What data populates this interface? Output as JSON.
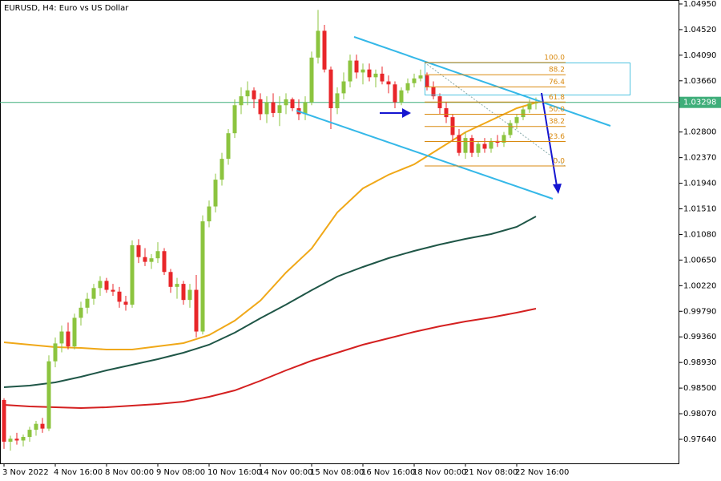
{
  "chart_data": {
    "type": "candlestick",
    "title": "EURUSD, H4:  Euro vs US Dollar",
    "ylim": [
      0.97236,
      1.05017
    ],
    "yticks": [
      {
        "value": 1.0495,
        "label": "1.04950"
      },
      {
        "value": 1.0452,
        "label": "1.04520"
      },
      {
        "value": 1.0409,
        "label": "1.04090"
      },
      {
        "value": 1.0366,
        "label": "1.03660"
      },
      {
        "value": 1.028,
        "label": "1.02800"
      },
      {
        "value": 1.0237,
        "label": "1.02370"
      },
      {
        "value": 1.0194,
        "label": "1.01940"
      },
      {
        "value": 1.0151,
        "label": "1.01510"
      },
      {
        "value": 1.0108,
        "label": "1.01080"
      },
      {
        "value": 1.0065,
        "label": "1.00650"
      },
      {
        "value": 1.0022,
        "label": "1.00220"
      },
      {
        "value": 0.9979,
        "label": "0.99790"
      },
      {
        "value": 0.9936,
        "label": "0.99360"
      },
      {
        "value": 0.9893,
        "label": "0.98930"
      },
      {
        "value": 0.985,
        "label": "0.98500"
      },
      {
        "value": 0.9807,
        "label": "0.98070"
      },
      {
        "value": 0.9764,
        "label": "0.97640"
      }
    ],
    "current_price": {
      "value": 1.03298,
      "label": "1.03298",
      "color": "#3fae7a"
    },
    "bull_color": "#8cc43f",
    "bear_color": "#e8262a",
    "categories": [
      "3 Nov 2022",
      null,
      null,
      null,
      null,
      null,
      null,
      null,
      "4 Nov 16:00",
      null,
      null,
      null,
      null,
      null,
      null,
      null,
      "8 Nov 00:00",
      null,
      null,
      null,
      null,
      null,
      null,
      null,
      "9 Nov 08:00",
      null,
      null,
      null,
      null,
      null,
      null,
      null,
      "10 Nov 16:00",
      null,
      null,
      null,
      null,
      null,
      null,
      null,
      "14 Nov 00:00",
      null,
      null,
      null,
      null,
      null,
      null,
      null,
      "15 Nov 08:00",
      null,
      null,
      null,
      null,
      null,
      null,
      null,
      "16 Nov 16:00",
      null,
      null,
      null,
      null,
      null,
      null,
      null,
      "18 Nov 00:00",
      null,
      null,
      null,
      null,
      null,
      null,
      null,
      "21 Nov 08:00",
      null,
      null,
      null,
      null,
      null,
      null,
      null,
      "22 Nov 16:00",
      null,
      null,
      null
    ],
    "ohlc": [
      [
        0.983,
        0.9833,
        0.9748,
        0.976
      ],
      [
        0.976,
        0.977,
        0.9745,
        0.9765
      ],
      [
        0.9765,
        0.9775,
        0.9755,
        0.9762
      ],
      [
        0.9762,
        0.9772,
        0.9752,
        0.9768
      ],
      [
        0.9768,
        0.9785,
        0.976,
        0.978
      ],
      [
        0.978,
        0.9795,
        0.977,
        0.979
      ],
      [
        0.979,
        0.98,
        0.9775,
        0.9782
      ],
      [
        0.9782,
        0.9905,
        0.9778,
        0.9895
      ],
      [
        0.9895,
        0.9935,
        0.9885,
        0.9925
      ],
      [
        0.9925,
        0.9955,
        0.991,
        0.9945
      ],
      [
        0.9945,
        0.996,
        0.9915,
        0.992
      ],
      [
        0.992,
        0.9975,
        0.9915,
        0.9968
      ],
      [
        0.9968,
        0.9995,
        0.9955,
        0.9985
      ],
      [
        0.9985,
        1.001,
        0.9975,
        1.0
      ],
      [
        1.0,
        1.0025,
        0.999,
        1.0018
      ],
      [
        1.0018,
        1.0038,
        1.0005,
        1.003
      ],
      [
        1.003,
        1.0035,
        1.001,
        1.0015
      ],
      [
        1.0015,
        1.0025,
        1.0005,
        1.0012
      ],
      [
        1.0012,
        1.002,
        0.9985,
        0.9995
      ],
      [
        0.9995,
        1.0005,
        0.998,
        0.999
      ],
      [
        0.999,
        1.0098,
        0.9985,
        1.009
      ],
      [
        1.009,
        1.01,
        1.006,
        1.007
      ],
      [
        1.007,
        1.0085,
        1.0055,
        1.0062
      ],
      [
        1.0062,
        1.0075,
        1.005,
        1.0068
      ],
      [
        1.0068,
        1.0095,
        1.006,
        1.008
      ],
      [
        1.008,
        1.0085,
        1.004,
        1.0045
      ],
      [
        1.0045,
        1.005,
        1.001,
        1.002
      ],
      [
        1.002,
        1.0035,
        1.0,
        1.0025
      ],
      [
        1.0025,
        1.003,
        0.999,
        0.9998
      ],
      [
        0.9998,
        1.0025,
        0.9985,
        1.0015
      ],
      [
        1.0015,
        1.004,
        0.9935,
        0.9945
      ],
      [
        0.9945,
        1.014,
        0.994,
        1.013
      ],
      [
        1.013,
        1.0165,
        1.012,
        1.0155
      ],
      [
        1.0155,
        1.021,
        1.0145,
        1.02
      ],
      [
        1.02,
        1.0245,
        1.019,
        1.0235
      ],
      [
        1.0235,
        1.0285,
        1.0225,
        1.0278
      ],
      [
        1.0278,
        1.0335,
        1.027,
        1.0325
      ],
      [
        1.0325,
        1.0355,
        1.031,
        1.034
      ],
      [
        1.034,
        1.0365,
        1.0325,
        1.035
      ],
      [
        1.035,
        1.0355,
        1.032,
        1.0335
      ],
      [
        1.0335,
        1.0345,
        1.03,
        1.031
      ],
      [
        1.031,
        1.034,
        1.0295,
        1.033
      ],
      [
        1.033,
        1.0345,
        1.0305,
        1.0312
      ],
      [
        1.0312,
        1.034,
        1.029,
        1.0325
      ],
      [
        1.0325,
        1.0345,
        1.031,
        1.0335
      ],
      [
        1.0335,
        1.0338,
        1.0315,
        1.032
      ],
      [
        1.032,
        1.0335,
        1.03,
        1.031
      ],
      [
        1.031,
        1.034,
        1.03,
        1.033
      ],
      [
        1.033,
        1.0415,
        1.0325,
        1.0405
      ],
      [
        1.0405,
        1.0485,
        1.0395,
        1.045
      ],
      [
        1.045,
        1.046,
        1.038,
        1.0385
      ],
      [
        1.0385,
        1.039,
        1.0285,
        1.032
      ],
      [
        1.032,
        1.0355,
        1.031,
        1.0345
      ],
      [
        1.0345,
        1.038,
        1.0335,
        1.0365
      ],
      [
        1.0365,
        1.041,
        1.0355,
        1.04
      ],
      [
        1.04,
        1.041,
        1.037,
        1.038
      ],
      [
        1.038,
        1.0395,
        1.036,
        1.0385
      ],
      [
        1.0385,
        1.0395,
        1.0365,
        1.0372
      ],
      [
        1.0372,
        1.0385,
        1.0355,
        1.0378
      ],
      [
        1.0378,
        1.039,
        1.036,
        1.0365
      ],
      [
        1.0365,
        1.0375,
        1.0345,
        1.036
      ],
      [
        1.036,
        1.0365,
        1.032,
        1.033
      ],
      [
        1.033,
        1.0355,
        1.0325,
        1.035
      ],
      [
        1.035,
        1.037,
        1.0345,
        1.0362
      ],
      [
        1.0362,
        1.0378,
        1.0355,
        1.037
      ],
      [
        1.037,
        1.0385,
        1.0365,
        1.0375
      ],
      [
        1.0375,
        1.038,
        1.035,
        1.0355
      ],
      [
        1.0355,
        1.0365,
        1.0335,
        1.034
      ],
      [
        1.034,
        1.0345,
        1.031,
        1.032
      ],
      [
        1.032,
        1.033,
        1.0295,
        1.0305
      ],
      [
        1.0305,
        1.031,
        1.0265,
        1.0275
      ],
      [
        1.0275,
        1.0285,
        1.024,
        1.0245
      ],
      [
        1.0245,
        1.028,
        1.0235,
        1.027
      ],
      [
        1.027,
        1.0275,
        1.0238,
        1.0245
      ],
      [
        1.0245,
        1.0265,
        1.0238,
        1.026
      ],
      [
        1.026,
        1.027,
        1.0245,
        1.0252
      ],
      [
        1.0252,
        1.027,
        1.0245,
        1.0265
      ],
      [
        1.0265,
        1.0275,
        1.0255,
        1.0262
      ],
      [
        1.0262,
        1.028,
        1.0255,
        1.0275
      ],
      [
        1.0275,
        1.03,
        1.027,
        1.0295
      ],
      [
        1.0295,
        1.031,
        1.0285,
        1.0305
      ],
      [
        1.0305,
        1.0322,
        1.03,
        1.0318
      ],
      [
        1.0318,
        1.0335,
        1.0312,
        1.0328
      ],
      [
        1.0328,
        1.0338,
        1.0318,
        1.03298
      ]
    ],
    "series": [
      {
        "color": "#f0a818",
        "x": [
          0,
          4,
          8,
          12,
          16,
          20,
          24,
          28,
          32,
          36,
          40,
          44,
          48,
          52,
          56,
          60,
          64,
          68,
          72,
          76,
          80,
          83
        ],
        "values": [
          0.99269,
          0.99228,
          0.99188,
          0.99175,
          0.99148,
          0.99148,
          0.99201,
          0.99255,
          0.9939,
          0.99632,
          0.99969,
          1.0044,
          1.00844,
          1.0145,
          1.01854,
          1.02082,
          1.02257,
          1.02527,
          1.02796,
          1.02998,
          1.032,
          1.03294
        ]
      },
      {
        "color": "#1f5647",
        "x": [
          0,
          4,
          8,
          12,
          16,
          20,
          24,
          28,
          32,
          36,
          40,
          44,
          48,
          52,
          56,
          60,
          64,
          68,
          72,
          76,
          80,
          83
        ],
        "values": [
          0.98515,
          0.98542,
          0.98596,
          0.9869,
          0.98798,
          0.98892,
          0.98986,
          0.99094,
          0.99228,
          0.9943,
          0.99673,
          0.99902,
          1.00144,
          1.00373,
          1.00534,
          1.00682,
          1.00804,
          1.00911,
          1.01005,
          1.01086,
          1.01207,
          1.01382
        ]
      },
      {
        "color": "#d42020",
        "x": [
          0,
          4,
          8,
          12,
          16,
          20,
          24,
          28,
          32,
          36,
          40,
          44,
          48,
          52,
          56,
          60,
          64,
          68,
          72,
          76,
          80,
          83
        ],
        "values": [
          0.98219,
          0.98192,
          0.98178,
          0.98165,
          0.98178,
          0.98205,
          0.98232,
          0.98273,
          0.98353,
          0.98461,
          0.98623,
          0.98798,
          0.98959,
          0.99094,
          0.99228,
          0.99336,
          0.99444,
          0.99538,
          0.99619,
          0.99686,
          0.99767,
          0.99834
        ]
      }
    ],
    "fib": {
      "high": 1.03967,
      "low": 1.02231,
      "color": "#d98a10",
      "levels": [
        {
          "value": 100,
          "label": "100.0"
        },
        {
          "value": 88.2,
          "label": "88.2"
        },
        {
          "value": 76.4,
          "label": "76.4"
        },
        {
          "value": 61.8,
          "label": "61.8"
        },
        {
          "value": 50,
          "label": "50.0"
        },
        {
          "value": 38.2,
          "label": "38.2"
        },
        {
          "value": 23.6,
          "label": "23.6"
        },
        {
          "value": 0,
          "label": "0.0"
        }
      ]
    }
  }
}
